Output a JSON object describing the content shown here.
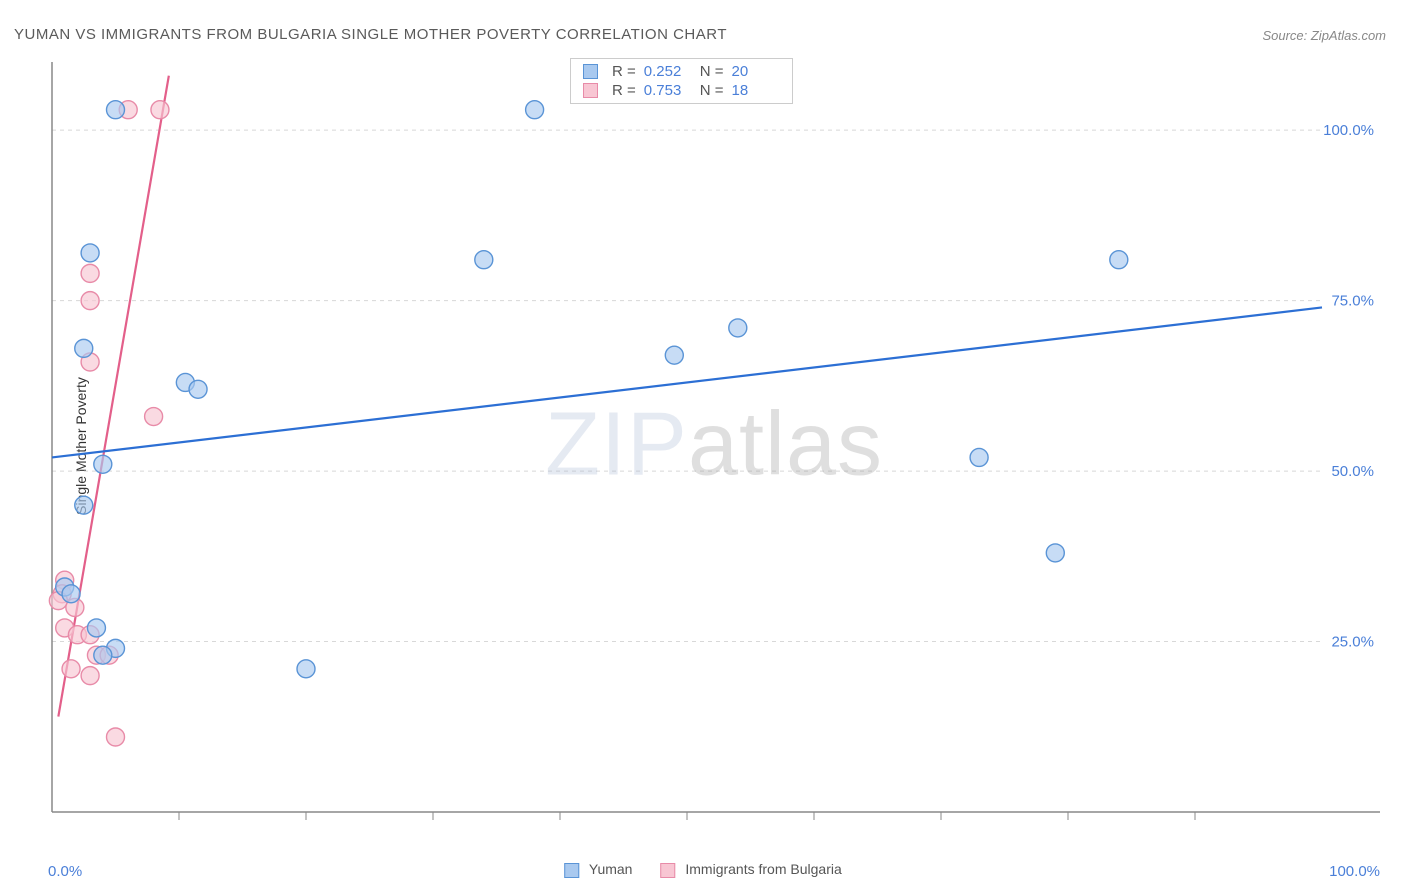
{
  "title": "YUMAN VS IMMIGRANTS FROM BULGARIA SINGLE MOTHER POVERTY CORRELATION CHART",
  "source": "Source: ZipAtlas.com",
  "ylabel": "Single Mother Poverty",
  "watermark_bold": "ZIP",
  "watermark_thin": "atlas",
  "xlim": [
    0,
    100
  ],
  "ylim": [
    0,
    110
  ],
  "x_axis_labels": {
    "left": "0.0%",
    "right": "100.0%"
  },
  "y_ticks": [
    {
      "v": 25,
      "label": "25.0%"
    },
    {
      "v": 50,
      "label": "50.0%"
    },
    {
      "v": 75,
      "label": "75.0%"
    },
    {
      "v": 100,
      "label": "100.0%"
    }
  ],
  "x_tick_positions": [
    10,
    20,
    30,
    40,
    50,
    60,
    70,
    80,
    90
  ],
  "colors": {
    "series_a_fill": "#a9c9ef",
    "series_a_stroke": "#5a94d6",
    "series_a_line": "#2c6fd4",
    "series_b_fill": "#f8c6d3",
    "series_b_stroke": "#e88ba8",
    "series_b_line": "#e35f8a",
    "axis": "#888888",
    "grid": "#d8d8d8",
    "tick_text": "#4a7fd8"
  },
  "marker_radius": 9,
  "line_width": 2.2,
  "series_a": {
    "name": "Yuman",
    "R": "0.252",
    "N": "20",
    "points": [
      [
        5,
        103
      ],
      [
        38,
        103
      ],
      [
        3,
        82
      ],
      [
        34,
        81
      ],
      [
        84,
        81
      ],
      [
        2.5,
        68
      ],
      [
        54,
        71
      ],
      [
        49,
        67
      ],
      [
        10.5,
        63
      ],
      [
        11.5,
        62
      ],
      [
        4,
        51
      ],
      [
        73,
        52
      ],
      [
        2.5,
        45
      ],
      [
        79,
        38
      ],
      [
        1,
        33
      ],
      [
        1.5,
        32
      ],
      [
        3.5,
        27
      ],
      [
        5,
        24
      ],
      [
        4,
        23
      ],
      [
        20,
        21
      ]
    ],
    "trend": {
      "x1": 0,
      "y1": 52,
      "x2": 100,
      "y2": 74
    }
  },
  "series_b": {
    "name": "Immigrants from Bulgaria",
    "R": "0.753",
    "N": "18",
    "points": [
      [
        6,
        103
      ],
      [
        8.5,
        103
      ],
      [
        3,
        79
      ],
      [
        3,
        75
      ],
      [
        3,
        66
      ],
      [
        8,
        58
      ],
      [
        1,
        34
      ],
      [
        0.8,
        32
      ],
      [
        0.5,
        31
      ],
      [
        1.8,
        30
      ],
      [
        1,
        27
      ],
      [
        2,
        26
      ],
      [
        3,
        26
      ],
      [
        3.5,
        23
      ],
      [
        4.5,
        23
      ],
      [
        1.5,
        21
      ],
      [
        3,
        20
      ],
      [
        5,
        11
      ]
    ],
    "trend": {
      "x1": 0.5,
      "y1": 14,
      "x2": 9.2,
      "y2": 108
    }
  },
  "bottom_legend": [
    {
      "label": "Yuman",
      "series": "a"
    },
    {
      "label": "Immigrants from Bulgaria",
      "series": "b"
    }
  ]
}
